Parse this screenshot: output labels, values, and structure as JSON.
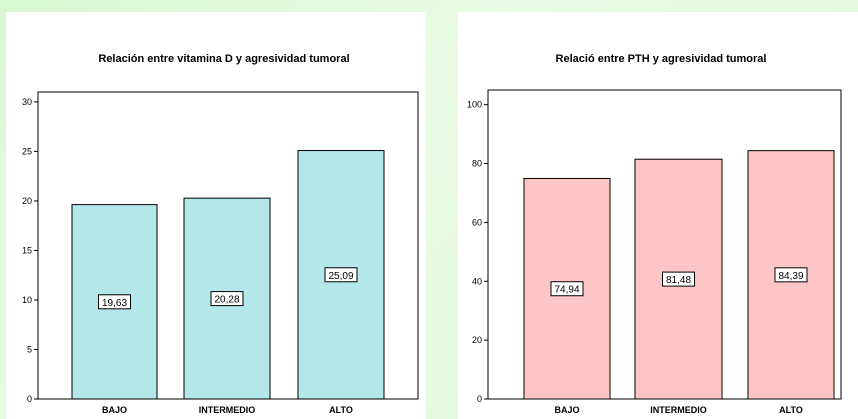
{
  "chart_data": [
    {
      "type": "bar",
      "title": "Relación entre vitamina D y agresividad tumoral",
      "categories": [
        "BAJO",
        "INTERMEDIO",
        "ALTO"
      ],
      "values": [
        19.63,
        20.28,
        25.09
      ],
      "data_labels": [
        "19,63",
        "20,28",
        "25,09"
      ],
      "ylim": [
        0,
        31
      ],
      "yticks": [
        0,
        5,
        10,
        15,
        20,
        25,
        30
      ],
      "ytick_labels": [
        "0",
        "5",
        "10",
        "15",
        "20",
        "25",
        "30"
      ],
      "bar_color": "#b4e7e9",
      "xlabel": "",
      "ylabel": ""
    },
    {
      "type": "bar",
      "title": "Relació entre PTH y agresividad tumoral",
      "categories": [
        "BAJO",
        "INTERMEDIO",
        "ALTO"
      ],
      "values": [
        74.94,
        81.48,
        84.39
      ],
      "data_labels": [
        "74,94",
        "81,48",
        "84,39"
      ],
      "ylim": [
        0,
        105
      ],
      "yticks": [
        0,
        20,
        40,
        60,
        80,
        100
      ],
      "ytick_labels": [
        "0",
        "20",
        "40",
        "60",
        "80",
        "100"
      ],
      "bar_color": "#fcc6c6",
      "xlabel": "",
      "ylabel": ""
    }
  ]
}
